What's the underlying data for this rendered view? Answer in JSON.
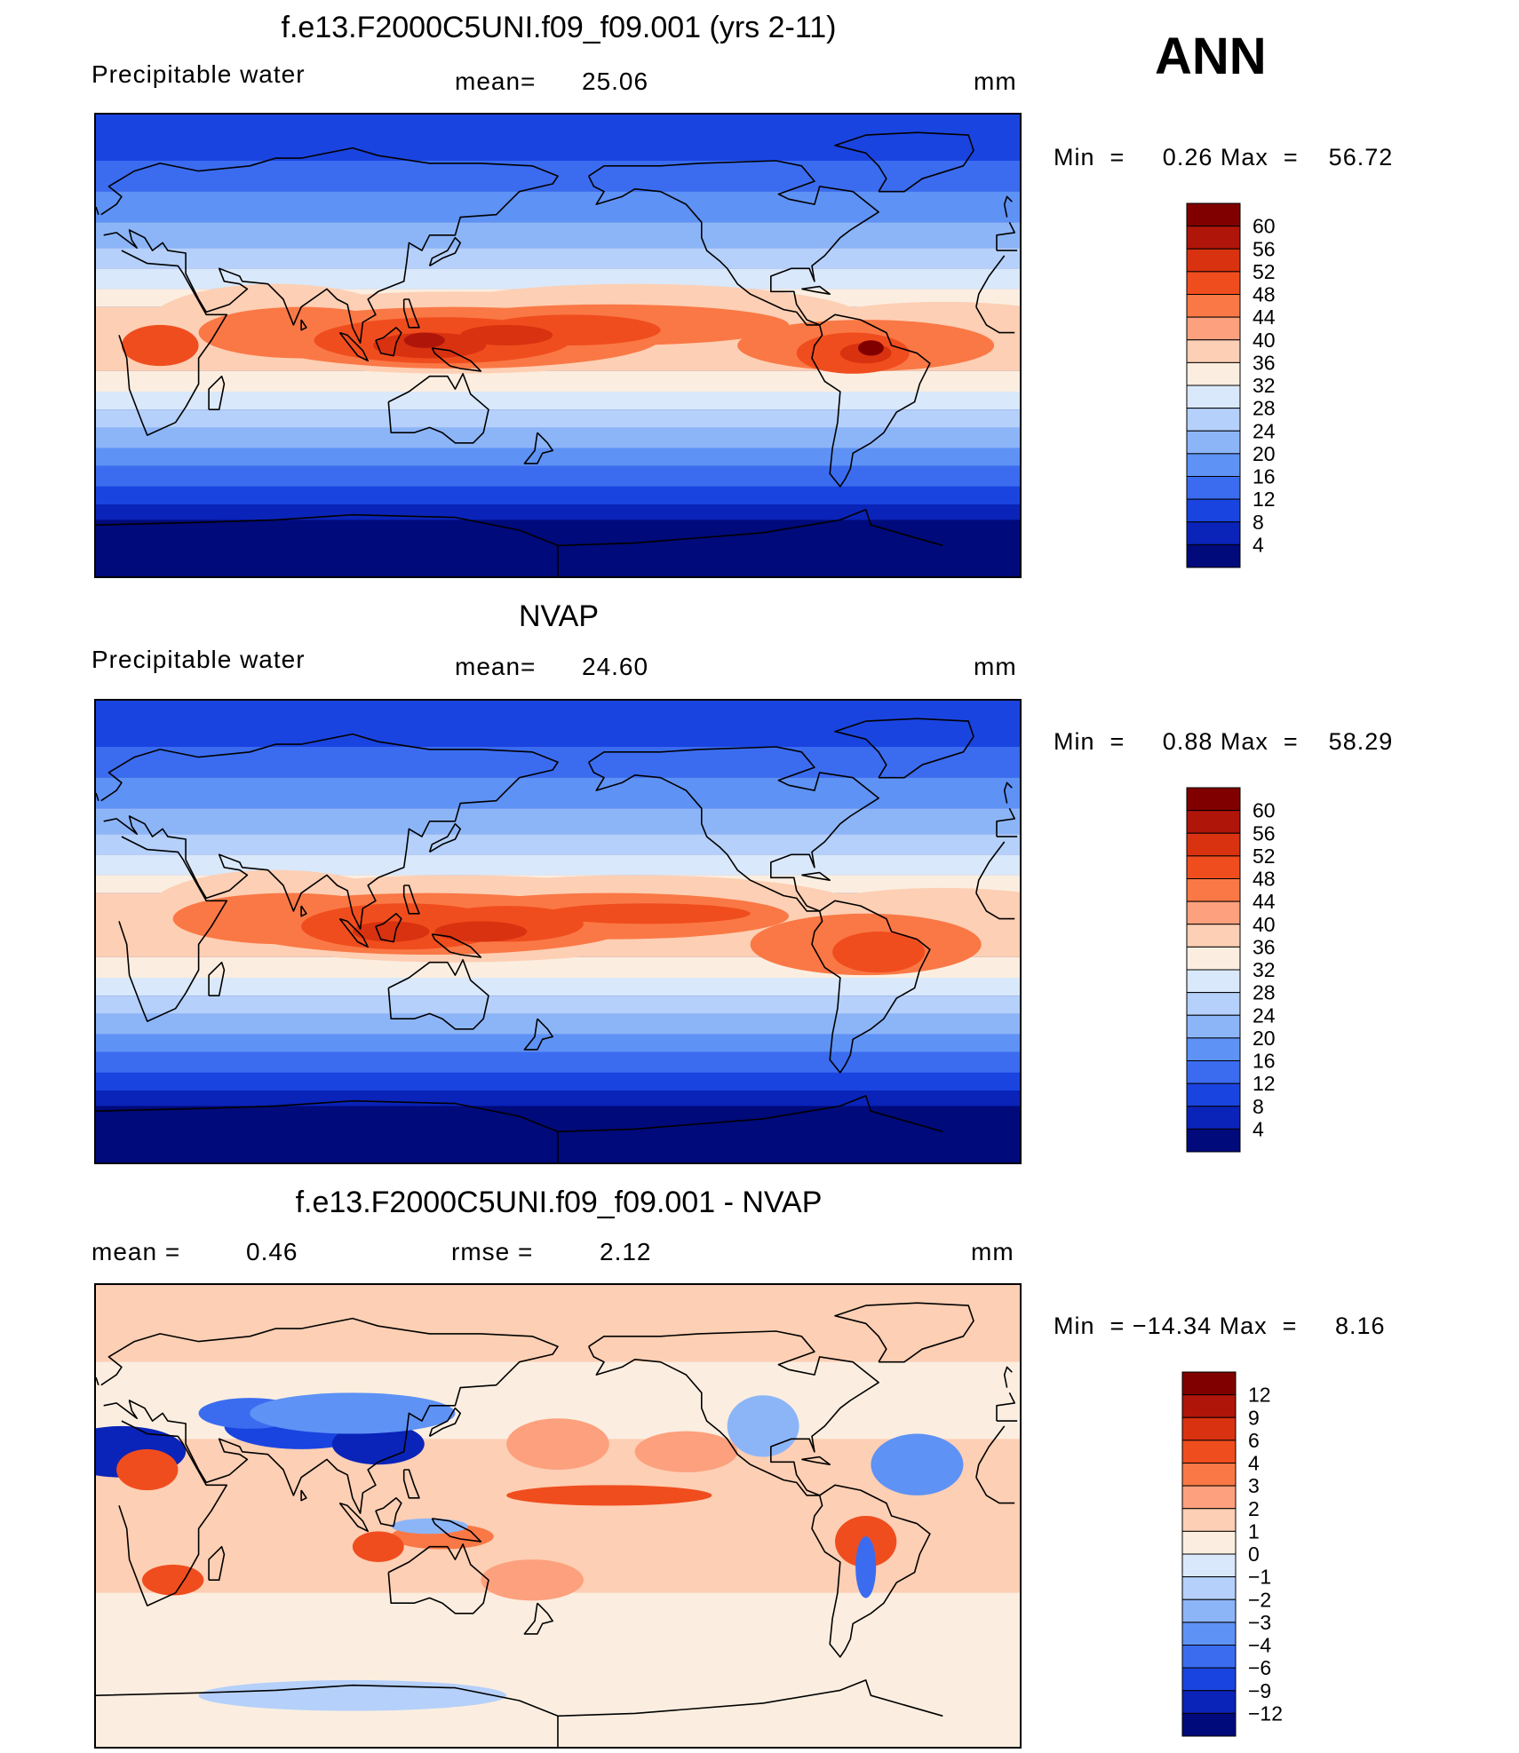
{
  "season": "ANN",
  "colors": {
    "p60": "#800000",
    "p56": "#b0150a",
    "p52": "#d93210",
    "p48": "#f04d1e",
    "p44": "#fa7845",
    "p40": "#fda07e",
    "p36": "#fdcfb4",
    "p32": "#fbeee0",
    "p28": "#d9e8fa",
    "p24": "#b5d0fa",
    "p20": "#8cb5f8",
    "p16": "#5e92f5",
    "p12": "#3b6cf0",
    "p8": "#1a44e0",
    "p4": "#0a23b8",
    "p0": "#000a7a"
  },
  "chart_data": [
    {
      "type": "heatmap",
      "panel": "model",
      "title": "f.e13.F2000C5UNI.f09_f09.001 (yrs 2-11)",
      "variable": "Precipitable  water",
      "stat_label": "mean=",
      "stat_value": "25.06",
      "units": "mm",
      "min_label": "Min  =",
      "min_value": "0.26",
      "max_label": "Max  =",
      "max_value": "56.72",
      "levels": [
        "60",
        "56",
        "52",
        "48",
        "44",
        "40",
        "36",
        "32",
        "28",
        "24",
        "20",
        "16",
        "12",
        "8",
        "4"
      ],
      "level_colors": [
        "#800000",
        "#b0150a",
        "#d93210",
        "#f04d1e",
        "#fa7845",
        "#fda07e",
        "#fdcfb4",
        "#fbeee0",
        "#d9e8fa",
        "#b5d0fa",
        "#8cb5f8",
        "#5e92f5",
        "#3b6cf0",
        "#1a44e0",
        "#0a23b8",
        "#000a7a"
      ],
      "colormap": "blue-white-red",
      "grid": false
    },
    {
      "type": "heatmap",
      "panel": "observation",
      "title": "NVAP",
      "variable": "Precipitable  water",
      "stat_label": "mean=",
      "stat_value": "24.60",
      "units": "mm",
      "min_label": "Min  =",
      "min_value": "0.88",
      "max_label": "Max  =",
      "max_value": "58.29",
      "levels": [
        "60",
        "56",
        "52",
        "48",
        "44",
        "40",
        "36",
        "32",
        "28",
        "24",
        "20",
        "16",
        "12",
        "8",
        "4"
      ],
      "level_colors": [
        "#800000",
        "#b0150a",
        "#d93210",
        "#f04d1e",
        "#fa7845",
        "#fda07e",
        "#fdcfb4",
        "#fbeee0",
        "#d9e8fa",
        "#b5d0fa",
        "#8cb5f8",
        "#5e92f5",
        "#3b6cf0",
        "#1a44e0",
        "#0a23b8",
        "#000a7a"
      ],
      "colormap": "blue-white-red",
      "grid": false
    },
    {
      "type": "heatmap",
      "panel": "difference",
      "title": "f.e13.F2000C5UNI.f09_f09.001 - NVAP",
      "stat_label": "mean =",
      "stat_value": "0.46",
      "stat2_label": "rmse =",
      "stat2_value": "2.12",
      "units": "mm",
      "min_label": "Min  =",
      "min_value": "−14.34",
      "max_label": "Max  =",
      "max_value": "8.16",
      "levels": [
        "12",
        "9",
        "6",
        "4",
        "3",
        "2",
        "1",
        "0",
        "−1",
        "−2",
        "−3",
        "−4",
        "−6",
        "−9",
        "−12"
      ],
      "level_colors": [
        "#800000",
        "#b0150a",
        "#d93210",
        "#f04d1e",
        "#fa7845",
        "#fda07e",
        "#fdcfb4",
        "#fbeee0",
        "#d9e8fa",
        "#b5d0fa",
        "#8cb5f8",
        "#5e92f5",
        "#3b6cf0",
        "#1a44e0",
        "#0a23b8",
        "#000a7a"
      ],
      "colormap": "blue-white-red",
      "grid": false
    }
  ]
}
